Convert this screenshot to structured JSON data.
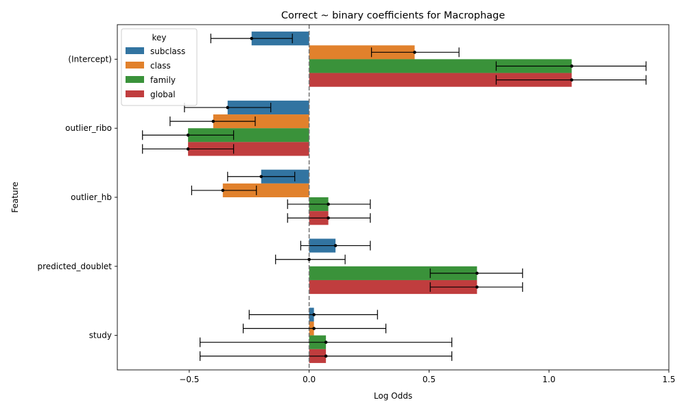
{
  "chart_data": {
    "type": "bar",
    "orientation": "horizontal",
    "title": "Correct ~ binary coefficients for Macrophage",
    "xlabel": "Log Odds",
    "ylabel": "Feature",
    "xlim": [
      -0.8,
      1.5
    ],
    "xticks": [
      -0.5,
      0.0,
      0.5,
      1.0,
      1.5
    ],
    "xtick_labels": [
      "−0.5",
      "0.0",
      "0.5",
      "1.0",
      "1.5"
    ],
    "reference_line": 0,
    "categories": [
      "(Intercept)",
      "outlier_ribo",
      "outlier_hb",
      "predicted_doublet",
      "study"
    ],
    "legend": {
      "title": "key",
      "placement": "upper-left"
    },
    "series": [
      {
        "name": "subclass",
        "color": "#3274a1",
        "values": [
          -0.24,
          -0.34,
          -0.2,
          0.11,
          0.02
        ],
        "err_low": [
          -0.41,
          -0.52,
          -0.34,
          -0.035,
          -0.25
        ],
        "err_high": [
          -0.07,
          -0.16,
          -0.06,
          0.255,
          0.285
        ]
      },
      {
        "name": "class",
        "color": "#e1812c",
        "values": [
          0.44,
          -0.4,
          -0.36,
          0.0,
          0.02
        ],
        "err_low": [
          0.26,
          -0.58,
          -0.49,
          -0.14,
          -0.275
        ],
        "err_high": [
          0.625,
          -0.225,
          -0.22,
          0.15,
          0.32
        ]
      },
      {
        "name": "family",
        "color": "#3a923a",
        "values": [
          1.095,
          -0.505,
          0.08,
          0.7,
          0.07
        ],
        "err_low": [
          0.78,
          -0.695,
          -0.09,
          0.505,
          -0.455
        ],
        "err_high": [
          1.405,
          -0.315,
          0.255,
          0.89,
          0.595
        ]
      },
      {
        "name": "global",
        "color": "#c03d3e",
        "values": [
          1.095,
          -0.505,
          0.08,
          0.7,
          0.07
        ],
        "err_low": [
          0.78,
          -0.695,
          -0.09,
          0.505,
          -0.455
        ],
        "err_high": [
          1.405,
          -0.315,
          0.255,
          0.89,
          0.595
        ]
      }
    ]
  }
}
